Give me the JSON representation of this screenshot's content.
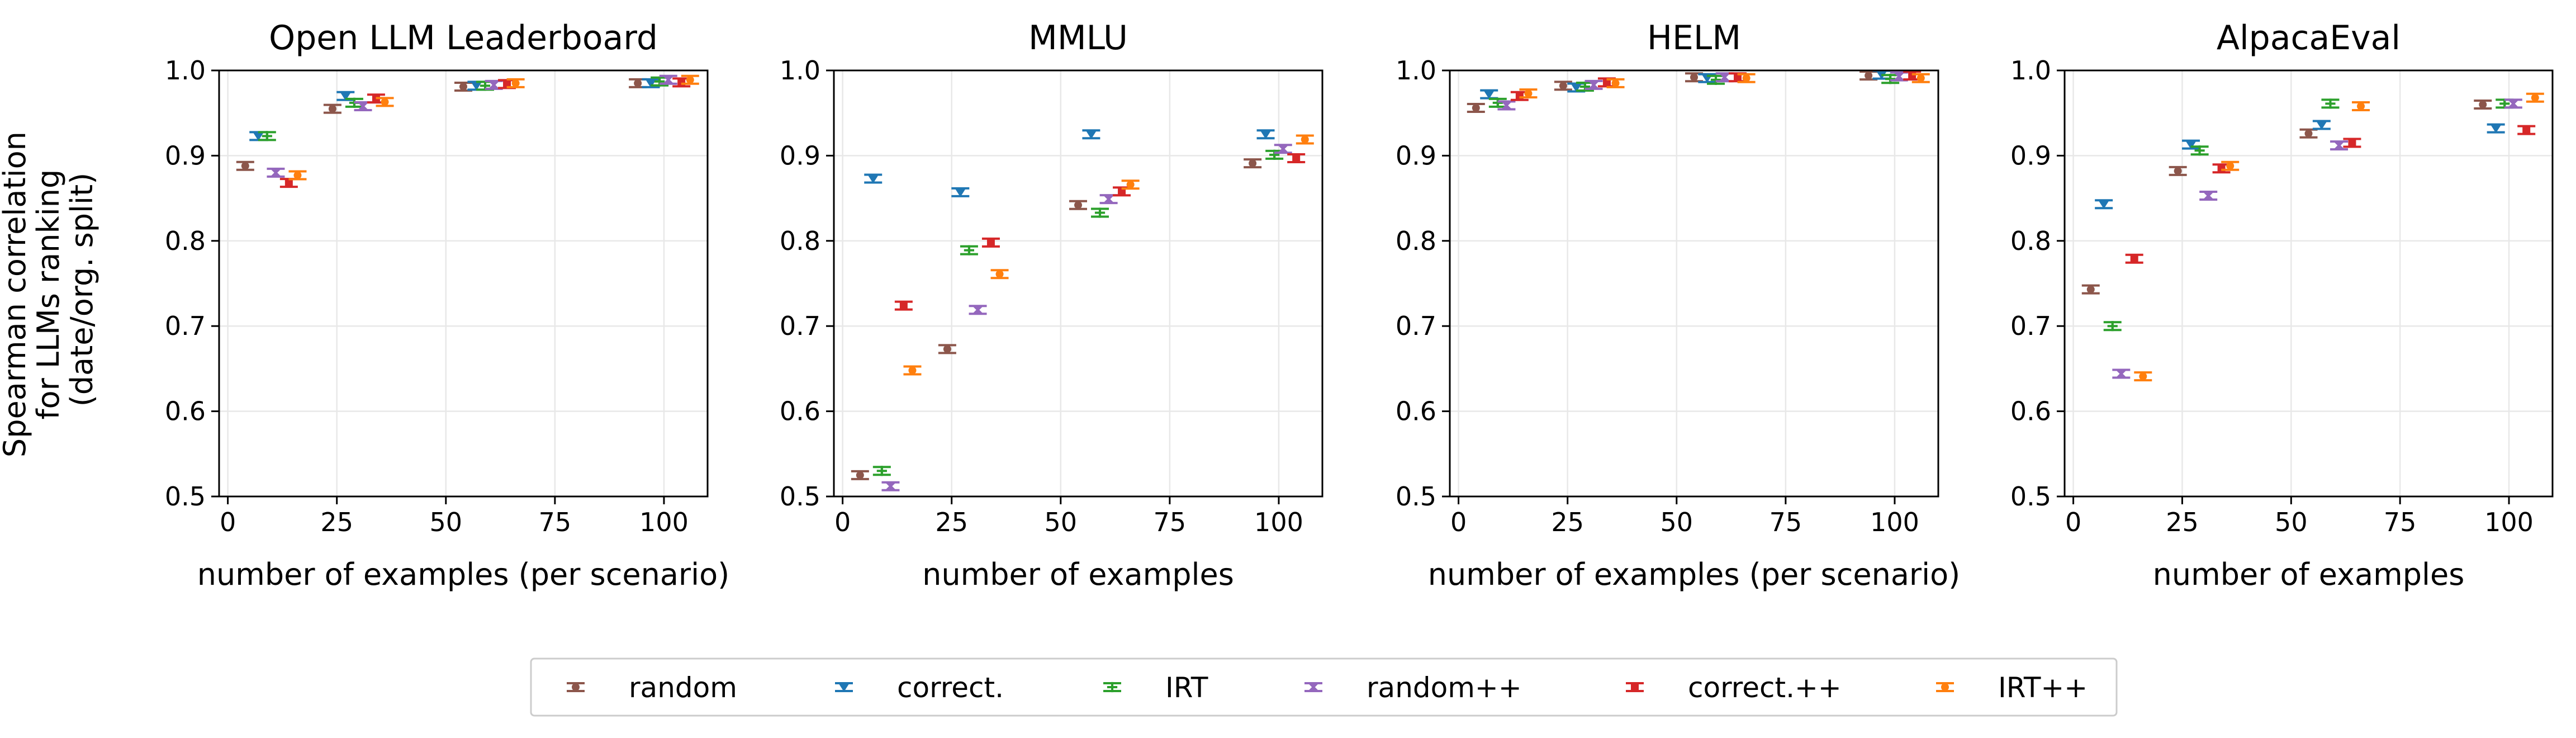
{
  "ylabel_lines": [
    "Spearman correlation",
    "for LLMs ranking",
    "(date/org. split)"
  ],
  "legend": [
    {
      "key": "random",
      "label": "random",
      "color": "#8c564b",
      "marker": "circle"
    },
    {
      "key": "correct",
      "label": "correct.",
      "color": "#1f77b4",
      "marker": "tri_down"
    },
    {
      "key": "irt",
      "label": "IRT",
      "color": "#2ca02c",
      "marker": "plus"
    },
    {
      "key": "randompp",
      "label": "random++",
      "color": "#9467bd",
      "marker": "x"
    },
    {
      "key": "correctpp",
      "label": "correct.++",
      "color": "#d62728",
      "marker": "square"
    },
    {
      "key": "irtpp",
      "label": "IRT++",
      "color": "#ff7f0e",
      "marker": "circle"
    }
  ],
  "chart_data": [
    {
      "type": "scatter",
      "title": "Open LLM Leaderboard",
      "xlabel": "number of examples (per scenario)",
      "ylabel": "Spearman correlation for LLMs ranking (date/org. split)",
      "xlim": [
        -2,
        110
      ],
      "ylim": [
        0.5,
        1.0
      ],
      "xticks": [
        0,
        25,
        50,
        75,
        100
      ],
      "yticks": [
        0.5,
        0.6,
        0.7,
        0.8,
        0.9,
        1.0
      ],
      "grid": true,
      "errorbars": true,
      "series": [
        {
          "key": "random",
          "name": "random",
          "points": [
            [
              4,
              0.888
            ],
            [
              24,
              0.955
            ],
            [
              54,
              0.981
            ],
            [
              94,
              0.985
            ]
          ]
        },
        {
          "key": "correct",
          "name": "correct.",
          "points": [
            [
              7,
              0.923
            ],
            [
              27,
              0.97
            ],
            [
              57,
              0.982
            ],
            [
              97,
              0.985
            ]
          ]
        },
        {
          "key": "irt",
          "name": "IRT",
          "points": [
            [
              9,
              0.923
            ],
            [
              29,
              0.962
            ],
            [
              59,
              0.982
            ],
            [
              99,
              0.987
            ]
          ]
        },
        {
          "key": "randompp",
          "name": "random++",
          "points": [
            [
              11,
              0.88
            ],
            [
              31,
              0.958
            ],
            [
              61,
              0.983
            ],
            [
              101,
              0.989
            ]
          ]
        },
        {
          "key": "correctpp",
          "name": "correct.++",
          "points": [
            [
              14,
              0.868
            ],
            [
              34,
              0.967
            ],
            [
              64,
              0.984
            ],
            [
              104,
              0.986
            ]
          ]
        },
        {
          "key": "irtpp",
          "name": "IRT++",
          "points": [
            [
              16,
              0.877
            ],
            [
              36,
              0.963
            ],
            [
              66,
              0.985
            ],
            [
              106,
              0.989
            ]
          ]
        }
      ]
    },
    {
      "type": "scatter",
      "title": "MMLU",
      "xlabel": "number of examples",
      "ylabel": "",
      "xlim": [
        -2,
        110
      ],
      "ylim": [
        0.5,
        1.0
      ],
      "xticks": [
        0,
        25,
        50,
        75,
        100
      ],
      "yticks": [
        0.5,
        0.6,
        0.7,
        0.8,
        0.9,
        1.0
      ],
      "grid": true,
      "errorbars": true,
      "series": [
        {
          "key": "random",
          "name": "random",
          "points": [
            [
              4,
              0.525
            ],
            [
              24,
              0.673
            ],
            [
              54,
              0.842
            ],
            [
              94,
              0.891
            ]
          ]
        },
        {
          "key": "correct",
          "name": "correct.",
          "points": [
            [
              7,
              0.873
            ],
            [
              27,
              0.857
            ],
            [
              57,
              0.925
            ],
            [
              97,
              0.925
            ]
          ]
        },
        {
          "key": "irt",
          "name": "IRT",
          "points": [
            [
              9,
              0.53
            ],
            [
              29,
              0.789
            ],
            [
              59,
              0.833
            ],
            [
              99,
              0.901
            ]
          ]
        },
        {
          "key": "randompp",
          "name": "random++",
          "points": [
            [
              11,
              0.512
            ],
            [
              31,
              0.719
            ],
            [
              61,
              0.849
            ],
            [
              101,
              0.908
            ]
          ]
        },
        {
          "key": "correctpp",
          "name": "correct.++",
          "points": [
            [
              14,
              0.724
            ],
            [
              34,
              0.798
            ],
            [
              64,
              0.858
            ],
            [
              104,
              0.897
            ]
          ]
        },
        {
          "key": "irtpp",
          "name": "IRT++",
          "points": [
            [
              16,
              0.648
            ],
            [
              36,
              0.761
            ],
            [
              66,
              0.866
            ],
            [
              106,
              0.919
            ]
          ]
        }
      ]
    },
    {
      "type": "scatter",
      "title": "HELM",
      "xlabel": "number of examples (per scenario)",
      "ylabel": "",
      "xlim": [
        -2,
        110
      ],
      "ylim": [
        0.5,
        1.0
      ],
      "xticks": [
        0,
        25,
        50,
        75,
        100
      ],
      "yticks": [
        0.5,
        0.6,
        0.7,
        0.8,
        0.9,
        1.0
      ],
      "grid": true,
      "errorbars": true,
      "series": [
        {
          "key": "random",
          "name": "random",
          "points": [
            [
              4,
              0.956
            ],
            [
              24,
              0.982
            ],
            [
              54,
              0.992
            ],
            [
              94,
              0.994
            ]
          ]
        },
        {
          "key": "correct",
          "name": "correct.",
          "points": [
            [
              7,
              0.972
            ],
            [
              27,
              0.98
            ],
            [
              57,
              0.991
            ],
            [
              97,
              0.995
            ]
          ]
        },
        {
          "key": "irt",
          "name": "IRT",
          "points": [
            [
              9,
              0.962
            ],
            [
              29,
              0.981
            ],
            [
              59,
              0.989
            ],
            [
              99,
              0.99
            ]
          ]
        },
        {
          "key": "randompp",
          "name": "random++",
          "points": [
            [
              11,
              0.959
            ],
            [
              31,
              0.983
            ],
            [
              61,
              0.992
            ],
            [
              101,
              0.993
            ]
          ]
        },
        {
          "key": "correctpp",
          "name": "correct.++",
          "points": [
            [
              14,
              0.97
            ],
            [
              34,
              0.986
            ],
            [
              64,
              0.992
            ],
            [
              104,
              0.994
            ]
          ]
        },
        {
          "key": "irtpp",
          "name": "IRT++",
          "points": [
            [
              16,
              0.973
            ],
            [
              36,
              0.985
            ],
            [
              66,
              0.991
            ],
            [
              106,
              0.991
            ]
          ]
        }
      ]
    },
    {
      "type": "scatter",
      "title": "AlpacaEval",
      "xlabel": "number of examples",
      "ylabel": "",
      "xlim": [
        -2,
        110
      ],
      "ylim": [
        0.5,
        1.0
      ],
      "xticks": [
        0,
        25,
        50,
        75,
        100
      ],
      "yticks": [
        0.5,
        0.6,
        0.7,
        0.8,
        0.9,
        1.0
      ],
      "grid": true,
      "errorbars": true,
      "series": [
        {
          "key": "random",
          "name": "random",
          "points": [
            [
              4,
              0.743
            ],
            [
              24,
              0.882
            ],
            [
              54,
              0.926
            ],
            [
              94,
              0.96
            ]
          ]
        },
        {
          "key": "correct",
          "name": "correct.",
          "points": [
            [
              7,
              0.843
            ],
            [
              27,
              0.913
            ],
            [
              57,
              0.936
            ],
            [
              97,
              0.932
            ]
          ]
        },
        {
          "key": "irt",
          "name": "IRT",
          "points": [
            [
              9,
              0.7
            ],
            [
              29,
              0.906
            ],
            [
              59,
              0.961
            ],
            [
              99,
              0.961
            ]
          ]
        },
        {
          "key": "randompp",
          "name": "random++",
          "points": [
            [
              11,
              0.644
            ],
            [
              31,
              0.853
            ],
            [
              61,
              0.912
            ],
            [
              101,
              0.961
            ]
          ]
        },
        {
          "key": "correctpp",
          "name": "correct.++",
          "points": [
            [
              14,
              0.779
            ],
            [
              34,
              0.885
            ],
            [
              64,
              0.915
            ],
            [
              104,
              0.93
            ]
          ]
        },
        {
          "key": "irtpp",
          "name": "IRT++",
          "points": [
            [
              16,
              0.641
            ],
            [
              36,
              0.888
            ],
            [
              66,
              0.958
            ],
            [
              106,
              0.968
            ]
          ]
        }
      ]
    }
  ]
}
